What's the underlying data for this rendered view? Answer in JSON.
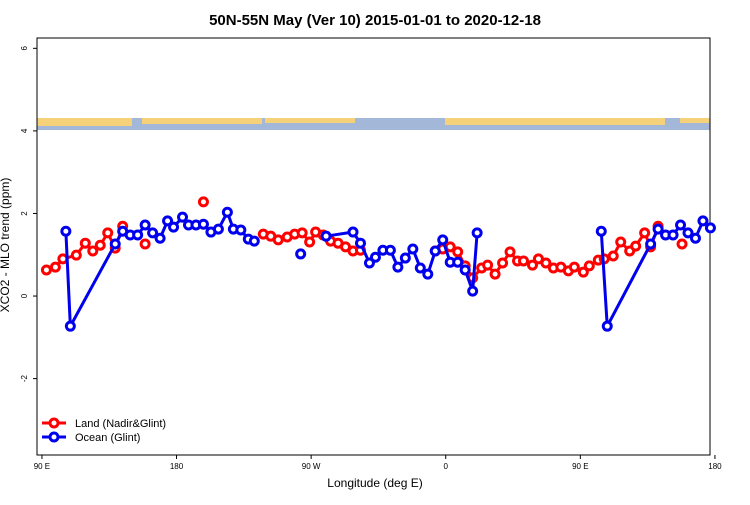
{
  "chart_data": {
    "type": "line",
    "title": "50N-55N May (Ver 10)   2015-01-01 to 2020-12-18",
    "x_label": "Longitude (deg E)",
    "y_label": "XCO2 - MLO trend (ppm)",
    "xlim": [
      86.7,
      536.7
    ],
    "ylim": [
      -3.85,
      6.25
    ],
    "xticks": [
      {
        "value": 90,
        "label": "90 E"
      },
      {
        "value": 180,
        "label": "180"
      },
      {
        "value": 270,
        "label": "90 W"
      },
      {
        "value": 360,
        "label": "0"
      },
      {
        "value": 450,
        "label": "90 E"
      },
      {
        "value": 540,
        "label": "180"
      }
    ],
    "yticks": [
      -2,
      0,
      2,
      4,
      6
    ],
    "legend": "bottom-left",
    "series": [
      {
        "name": "Land (Nadir&Glint)",
        "color": "#ff0000",
        "x": [
          93,
          99,
          104,
          113,
          119,
          124,
          129,
          134,
          139,
          144,
          null,
          159,
          null,
          198,
          null,
          238,
          243,
          248,
          254,
          259,
          264,
          269,
          273,
          278,
          283,
          288,
          293,
          298,
          303,
          null,
          353,
          358,
          363,
          368,
          373,
          378,
          384,
          388,
          393,
          398,
          403,
          408,
          412,
          418,
          422,
          427,
          432,
          437,
          442,
          446,
          452,
          456,
          462,
          466,
          472,
          477,
          483,
          487,
          493,
          497,
          502,
          null,
          518
        ],
        "values": [
          0.63,
          0.7,
          0.9,
          0.99,
          1.28,
          1.09,
          1.23,
          1.53,
          1.16,
          1.69,
          null,
          1.26,
          null,
          2.28,
          null,
          1.5,
          1.45,
          1.36,
          1.43,
          1.5,
          1.53,
          1.31,
          1.55,
          1.48,
          1.33,
          1.28,
          1.19,
          1.09,
          1.11,
          null,
          1.09,
          1.14,
          1.19,
          1.07,
          0.73,
          0.44,
          0.68,
          0.75,
          0.53,
          0.8,
          1.07,
          0.85,
          0.85,
          0.75,
          0.9,
          0.8,
          0.68,
          0.7,
          0.61,
          0.7,
          0.58,
          0.73,
          0.87,
          0.9,
          0.97,
          1.31,
          1.09,
          1.21,
          1.53,
          1.19,
          1.69,
          null,
          1.26
        ]
      },
      {
        "name": "Ocean (Glint)",
        "color": "#0000ee",
        "x": [
          106,
          109,
          139,
          144,
          149,
          154,
          159,
          164,
          169,
          174,
          178,
          184,
          188,
          193,
          198,
          203,
          208,
          214,
          218,
          223,
          228,
          232,
          null,
          263,
          null,
          280,
          298,
          303,
          309,
          313,
          318,
          323,
          328,
          333,
          338,
          343,
          348,
          353,
          358,
          363,
          368,
          373,
          378,
          381,
          null,
          464,
          468,
          497,
          502,
          507,
          512,
          517,
          522,
          527,
          532,
          537
        ],
        "values": [
          1.57,
          -0.73,
          1.26,
          1.57,
          1.48,
          1.48,
          1.72,
          1.53,
          1.4,
          1.82,
          1.67,
          1.91,
          1.72,
          1.72,
          1.74,
          1.55,
          1.62,
          2.03,
          1.62,
          1.6,
          1.38,
          1.33,
          null,
          1.02,
          null,
          1.45,
          1.55,
          1.28,
          0.8,
          0.94,
          1.11,
          1.11,
          0.7,
          0.92,
          1.14,
          0.68,
          0.53,
          1.09,
          1.36,
          0.82,
          0.82,
          0.63,
          0.12,
          1.53,
          null,
          1.57,
          -0.73,
          1.26,
          1.62,
          1.48,
          1.48,
          1.72,
          1.53,
          1.4,
          1.82,
          1.65
        ]
      }
    ]
  }
}
